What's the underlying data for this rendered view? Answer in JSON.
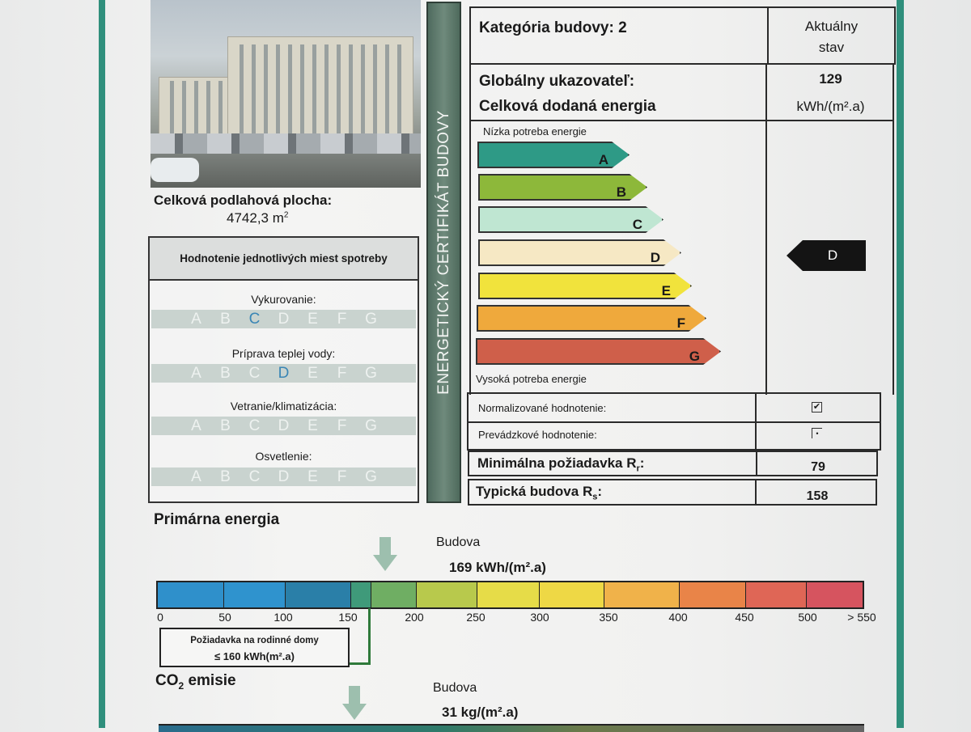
{
  "building": {
    "floor_area_label": "Celková podlahová plocha:",
    "floor_area_value": "4742,3 m",
    "floor_area_unit_sup": "2"
  },
  "consumption_box": {
    "title": "Hodnotenie  jednotlivých miest spotreby",
    "letters": [
      "A",
      "B",
      "C",
      "D",
      "E",
      "F",
      "G"
    ],
    "items": [
      {
        "label": "Vykurovanie:",
        "rating": "C"
      },
      {
        "label": "Príprava teplej vody:",
        "rating": "D"
      },
      {
        "label": "Vetranie/klimatizácia:",
        "rating": ""
      },
      {
        "label": "Osvetlenie:",
        "rating": ""
      }
    ]
  },
  "side_band": "ENERGETICKÝ CERTIFIKÁT BUDOVY",
  "certificate": {
    "category": "Kategória budovy: 2",
    "current_state_line1": "Aktuálny",
    "current_state_line2": "stav",
    "global_indicator": "Globálny ukazovateľ:",
    "total_energy": "Celková dodaná energia",
    "value": "129",
    "unit": "kWh/(m².a)",
    "low_demand": "Nízka potreba energie",
    "high_demand": "Vysoká potreba energie",
    "classes": [
      {
        "letter": "A",
        "color": "#2e9a86"
      },
      {
        "letter": "B",
        "color": "#8db83a"
      },
      {
        "letter": "C",
        "color": "#bfe6d2"
      },
      {
        "letter": "D",
        "color": "#f6e8c4"
      },
      {
        "letter": "E",
        "color": "#f1e33c"
      },
      {
        "letter": "F",
        "color": "#efa93c"
      },
      {
        "letter": "G",
        "color": "#cf5f4a"
      }
    ],
    "current_class": "D",
    "normalized_label": "Normalizované hodnotenie:",
    "normalized_checked": true,
    "operational_label": "Prevádzkové hodnotenie:",
    "operational_checked": false,
    "min_req_label": "Minimálna požiadavka R",
    "min_req_sub": "r",
    "min_req_value": "79",
    "typical_label": "Typická budova  R",
    "typical_sub": "s",
    "typical_value": "158"
  },
  "primary_energy": {
    "title": "Primárna energia",
    "building_label": "Budova",
    "building_value": "169 kWh/(m².a)",
    "ticks": [
      "0",
      "50",
      "100",
      "150",
      "200",
      "250",
      "300",
      "350",
      "400",
      "450",
      "500",
      "> 550"
    ],
    "segment_colors": [
      "#2f90cb",
      "#2f93ce",
      "#2a7fa8",
      "#3f9a7a",
      "#6fae63",
      "#b8c94c",
      "#e6dc48",
      "#eed845",
      "#f0b24a",
      "#e98448",
      "#df6656",
      "#d6545f"
    ],
    "requirement_line1": "Požiadavka na rodinné domy",
    "requirement_line2": "≤ 160 kWh(m².a)"
  },
  "co2": {
    "title_prefix": "CO",
    "title_sub": "2",
    "title_suffix": " emisie",
    "building_label": "Budova",
    "building_value": "31 kg/(m².a)"
  }
}
